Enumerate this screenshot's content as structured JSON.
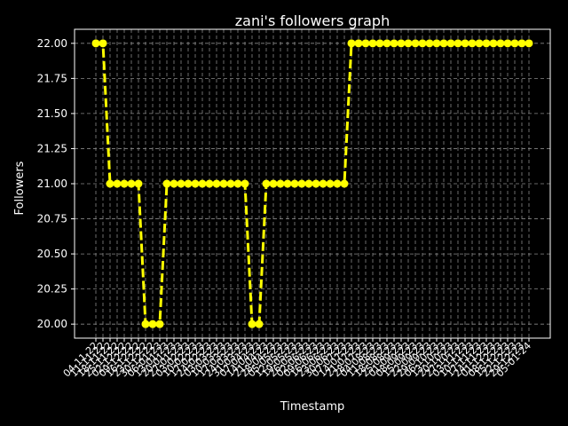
{
  "chart_data": {
    "type": "line",
    "title": "zani's followers graph",
    "xlabel": "Timestamp",
    "ylabel": "Followers",
    "ylim": [
      19.9,
      22.1
    ],
    "yticks": [
      "20.00",
      "20.25",
      "20.50",
      "20.75",
      "21.00",
      "21.25",
      "21.50",
      "21.75",
      "22.00"
    ],
    "grid": true,
    "line_color": "#ffff00",
    "background": "#000000",
    "x": [
      "04-11-22",
      "11-11-22",
      "18-11-22",
      "25-11-22",
      "02-12-22",
      "09-12-22",
      "16-12-22",
      "23-12-22",
      "30-12-22",
      "06-01-23",
      "13-01-23",
      "20-01-23",
      "27-01-23",
      "03-02-23",
      "10-02-23",
      "17-02-23",
      "24-02-23",
      "03-03-23",
      "10-03-23",
      "17-03-23",
      "24-03-23",
      "31-03-23",
      "07-04-23",
      "14-04-23",
      "21-04-23",
      "28-04-23",
      "05-05-23",
      "12-05-23",
      "19-05-23",
      "26-05-23",
      "02-06-23",
      "09-06-23",
      "16-06-23",
      "23-06-23",
      "30-06-23",
      "07-07-23",
      "14-07-23",
      "21-07-23",
      "28-07-23",
      "04-08-23",
      "11-08-23",
      "18-08-23",
      "25-08-23",
      "01-09-23",
      "08-09-23",
      "15-09-23",
      "22-09-23",
      "29-09-23",
      "06-10-23",
      "13-10-23",
      "20-10-23",
      "27-10-23",
      "03-11-23",
      "10-11-23",
      "17-11-23",
      "24-11-23",
      "01-12-23",
      "08-12-23",
      "15-12-23",
      "22-12-23",
      "29-12-23",
      "05-01-24"
    ],
    "values": [
      22,
      22,
      21,
      21,
      21,
      21,
      21,
      20,
      20,
      20,
      21,
      21,
      21,
      21,
      21,
      21,
      21,
      21,
      21,
      21,
      21,
      21,
      20,
      20,
      21,
      21,
      21,
      21,
      21,
      21,
      21,
      21,
      21,
      21,
      21,
      21,
      22,
      22,
      22,
      22,
      22,
      22,
      22,
      22,
      22,
      22,
      22,
      22,
      22,
      22,
      22,
      22,
      22,
      22,
      22,
      22,
      22,
      22,
      22,
      22,
      22,
      22
    ]
  }
}
